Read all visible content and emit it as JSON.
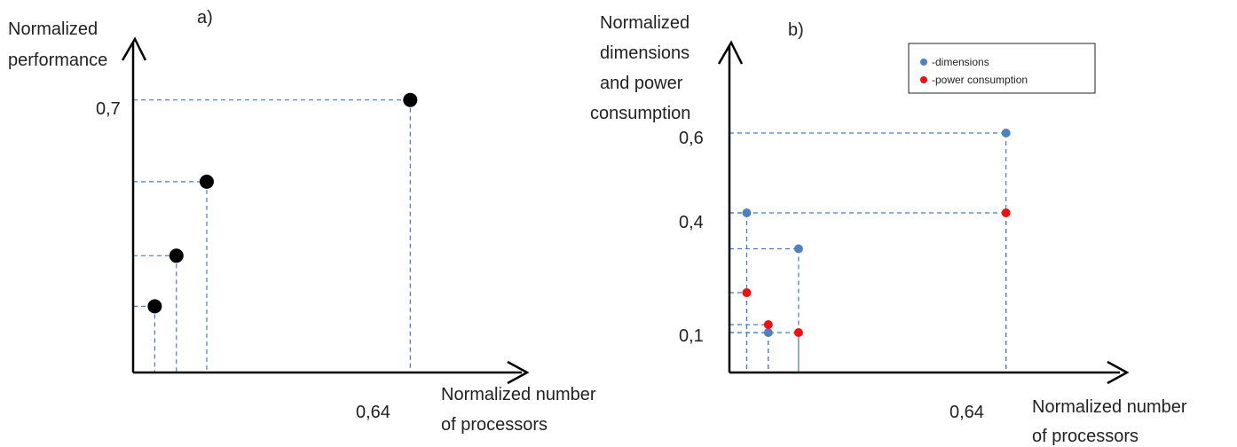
{
  "chart_data": [
    {
      "type": "scatter",
      "panel_label": "a)",
      "ylabel": "Normalized performance",
      "xlabel": "Normalized number of processors",
      "x_tick_labels": [
        "0,64"
      ],
      "y_tick_labels": [
        "0,7"
      ],
      "series": [
        {
          "color": "#000000",
          "points": [
            {
              "x": 0.05,
              "y": 0.17
            },
            {
              "x": 0.1,
              "y": 0.3
            },
            {
              "x": 0.17,
              "y": 0.49
            },
            {
              "x": 0.64,
              "y": 0.7
            }
          ]
        }
      ]
    },
    {
      "type": "scatter",
      "panel_label": "b)",
      "ylabel": "Normalized dimensions and power consumption",
      "xlabel": "Normalized number of processors",
      "x_tick_labels": [
        "0,64"
      ],
      "y_tick_labels": [
        "0,6",
        "0,4",
        "0,1"
      ],
      "legend_position": "top-right",
      "series": [
        {
          "name": "-dimensions",
          "color": "#4f81bd",
          "points": [
            {
              "x": 0.04,
              "y": 0.4
            },
            {
              "x": 0.09,
              "y": 0.1
            },
            {
              "x": 0.16,
              "y": 0.31
            },
            {
              "x": 0.64,
              "y": 0.6
            }
          ]
        },
        {
          "name": "-power consumption",
          "color": "#ee1111",
          "points": [
            {
              "x": 0.04,
              "y": 0.2
            },
            {
              "x": 0.09,
              "y": 0.12
            },
            {
              "x": 0.16,
              "y": 0.1
            },
            {
              "x": 0.64,
              "y": 0.4
            }
          ]
        }
      ]
    }
  ]
}
